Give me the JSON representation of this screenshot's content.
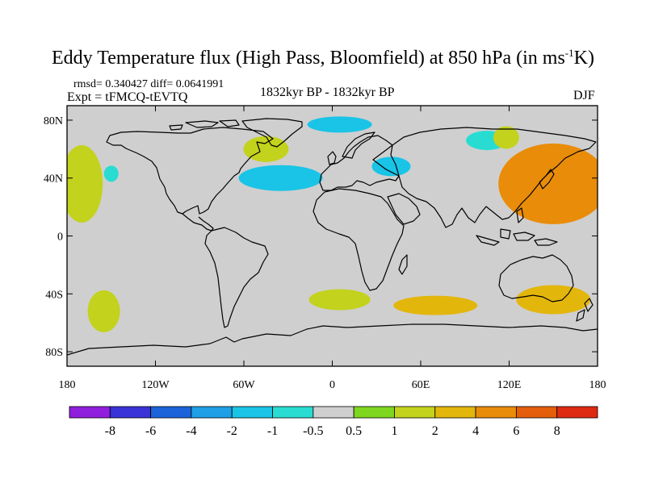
{
  "title": {
    "main": "Eddy Temperature flux (High Pass, Bloomfield) at 850 hPa (in ms",
    "exponent": "-1",
    "unit_end": "K)"
  },
  "stats_line": "rmsd= 0.340427 diff= 0.0641991",
  "experiment": "Expt = tFMCQ-tEVTQ",
  "period": "1832kyr BP - 1832kyr BP",
  "season": "DJF",
  "colors": {
    "ocean_land_background": "#cfcfcf",
    "coastline": "#000000"
  },
  "map": {
    "projection": "cylindrical-equidistant",
    "lon_range": [
      -180,
      180
    ],
    "lat_range": [
      -90,
      90
    ],
    "x_tick_labels": [
      "180",
      "120W",
      "60W",
      "0",
      "60E",
      "120E",
      "180"
    ],
    "y_tick_labels": [
      "80N",
      "40N",
      "0",
      "40S",
      "80S"
    ]
  },
  "colorbar": {
    "labels": [
      "-8",
      "-6",
      "-4",
      "-2",
      "-1",
      "-0.5",
      "0.5",
      "1",
      "2",
      "4",
      "6",
      "8"
    ],
    "colors": [
      "#8f1fdd",
      "#3a33d6",
      "#1c63d9",
      "#1e9fe6",
      "#19c4e6",
      "#28dcd2",
      "#cfcfcf",
      "#7ed61e",
      "#c3d21c",
      "#e3b60c",
      "#e98c09",
      "#e45e0c",
      "#df2a12"
    ]
  },
  "anomaly_regions": [
    {
      "name": "north-pacific-east",
      "lon": -170,
      "lat": 36,
      "level": "1"
    },
    {
      "name": "north-pacific-west",
      "lon": 150,
      "lat": 36,
      "level": "4"
    },
    {
      "name": "north-pacific-center",
      "lon": -150,
      "lat": 43,
      "level": "-0.5"
    },
    {
      "name": "greenland-south",
      "lon": -45,
      "lat": 60,
      "level": "1"
    },
    {
      "name": "north-atlantic",
      "lon": -35,
      "lat": 40,
      "level": "-1"
    },
    {
      "name": "barents-sea",
      "lon": 5,
      "lat": 77,
      "level": "-1"
    },
    {
      "name": "black-sea",
      "lon": 40,
      "lat": 48,
      "level": "-1"
    },
    {
      "name": "east-siberia",
      "lon": 105,
      "lat": 66,
      "level": "-0.5"
    },
    {
      "name": "kamchatka",
      "lon": 118,
      "lat": 68,
      "level": "1"
    },
    {
      "name": "south-pacific",
      "lon": -155,
      "lat": -52,
      "level": "1"
    },
    {
      "name": "south-atlantic",
      "lon": 5,
      "lat": -44,
      "level": "1"
    },
    {
      "name": "south-indian",
      "lon": 70,
      "lat": -48,
      "level": "2"
    },
    {
      "name": "southern-australia",
      "lon": 150,
      "lat": -44,
      "level": "2"
    }
  ]
}
